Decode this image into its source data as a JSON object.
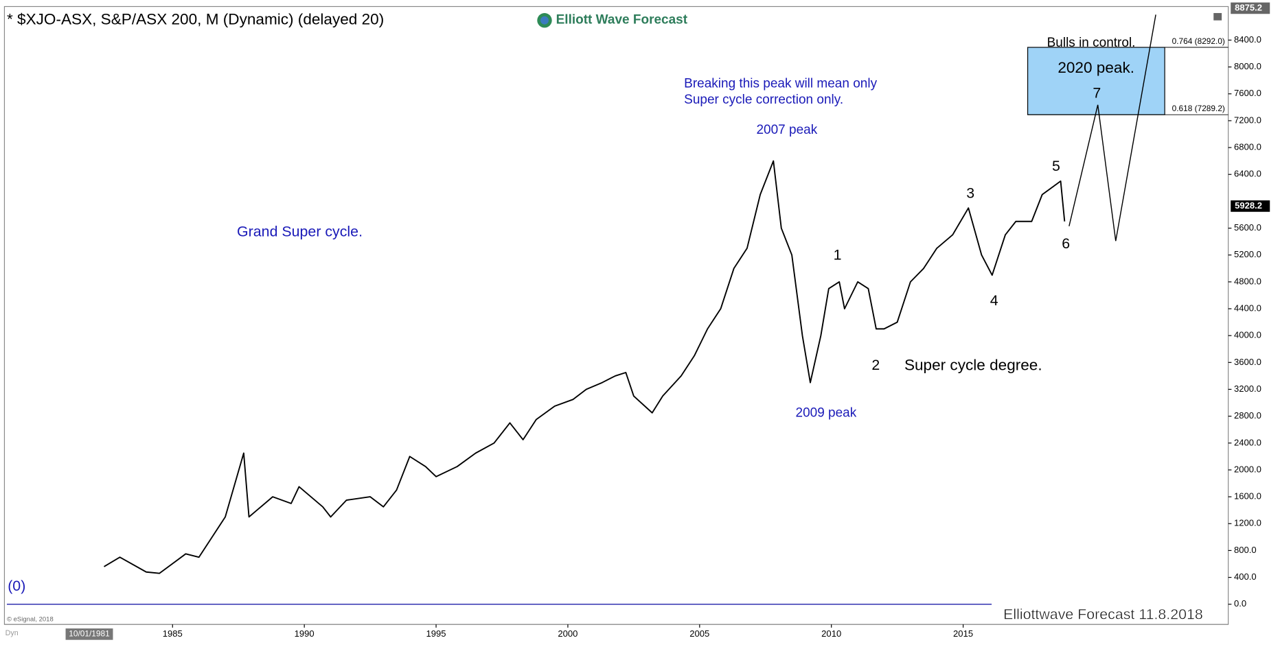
{
  "chart_data": {
    "type": "line",
    "title": "* $XJO-ASX, S&P/ASX 200, M (Dynamic) (delayed 20)",
    "logo": "Elliott Wave Forecast",
    "footer": "Elliottwave Forecast  11.8.2018",
    "copyright": "© eSignal, 2018",
    "mode": "Dyn",
    "x_start_label": "10/01/1981",
    "xlim": [
      1978.62,
      2025.06
    ],
    "ylim": [
      -300,
      8900
    ],
    "xticks": [
      1985,
      1990,
      1995,
      2000,
      2005,
      2010,
      2015
    ],
    "yticks": [
      {
        "value": 0,
        "label": "0.0"
      },
      {
        "value": 400,
        "label": "400.0"
      },
      {
        "value": 800,
        "label": "800.0"
      },
      {
        "value": 1200,
        "label": "1200.0"
      },
      {
        "value": 1600,
        "label": "1600.0"
      },
      {
        "value": 2000,
        "label": "2000.0"
      },
      {
        "value": 2400,
        "label": "2400.0"
      },
      {
        "value": 2800,
        "label": "2800.0"
      },
      {
        "value": 3200,
        "label": "3200.0"
      },
      {
        "value": 3600,
        "label": "3600.0"
      },
      {
        "value": 4000,
        "label": "4000.0"
      },
      {
        "value": 4400,
        "label": "4400.0"
      },
      {
        "value": 4800,
        "label": "4800.0"
      },
      {
        "value": 5200,
        "label": "5200.0"
      },
      {
        "value": 5600,
        "label": "5600.0"
      },
      {
        "value": 6400,
        "label": "6400.0"
      },
      {
        "value": 6800,
        "label": "6800.0"
      },
      {
        "value": 7200,
        "label": "7200.0"
      },
      {
        "value": 7600,
        "label": "7600.0"
      },
      {
        "value": 8000,
        "label": "8000.0"
      },
      {
        "value": 8400,
        "label": "8400.0"
      }
    ],
    "series": [
      {
        "color": "#000000",
        "x": [
          1982.4,
          1983.0,
          1984.0,
          1984.5,
          1985.5,
          1986.0,
          1986.5,
          1987.0,
          1987.7,
          1987.9,
          1988.2,
          1988.8,
          1989.5,
          1989.8,
          1990.7,
          1991.0,
          1991.6,
          1992.5,
          1993.0,
          1993.5,
          1994.0,
          1994.6,
          1995.0,
          1995.8,
          1996.5,
          1997.2,
          1997.8,
          1998.3,
          1998.8,
          1999.5,
          2000.2,
          2000.7,
          2001.3,
          2001.8,
          2002.2,
          2002.5,
          2003.2,
          2003.6,
          2004.3,
          2004.8,
          2005.3,
          2005.8,
          2006.3,
          2006.8,
          2007.3,
          2007.8,
          2008.1,
          2008.5,
          2008.9,
          2009.2,
          2009.6,
          2009.9,
          2010.3,
          2010.5,
          2011.0,
          2011.4,
          2011.7,
          2012.0,
          2012.5,
          2013.0,
          2013.5,
          2014.0,
          2014.6,
          2015.2,
          2015.7,
          2016.1,
          2016.6,
          2017.0,
          2017.6,
          2018.0,
          2018.7,
          2018.85
        ],
        "values": [
          560,
          700,
          480,
          460,
          750,
          700,
          1000,
          1300,
          2250,
          1300,
          1400,
          1600,
          1500,
          1750,
          1450,
          1300,
          1550,
          1600,
          1450,
          1700,
          2200,
          2050,
          1900,
          2050,
          2250,
          2400,
          2700,
          2450,
          2750,
          2950,
          3050,
          3200,
          3300,
          3400,
          3450,
          3100,
          2850,
          3100,
          3400,
          3700,
          4100,
          4400,
          5000,
          5300,
          6100,
          6600,
          5600,
          5200,
          4000,
          3300,
          4000,
          4700,
          4800,
          4400,
          4800,
          4700,
          4100,
          4100,
          4200,
          4800,
          5000,
          5300,
          5500,
          5900,
          5200,
          4900,
          5500,
          5700,
          5700,
          6100,
          6300,
          5700
        ]
      }
    ],
    "projection": {
      "x": [
        2019.02,
        2020.11,
        2020.79,
        2022.31
      ],
      "values": [
        5629,
        7436,
        5409,
        8779
      ]
    },
    "zone_x": [
      2017.45,
      2022.65
    ],
    "fib_levels": [
      {
        "value": 8292.0,
        "label": "0.764 (8292.0)"
      },
      {
        "value": 7289.2,
        "label": "0.618 (7289.2)"
      }
    ],
    "last_price": {
      "value": 5928.2,
      "label": "5928.2"
    },
    "high_tag": {
      "value": 8875.2,
      "label": "8875.2"
    },
    "annotations": [
      "(0)",
      "Grand Super cycle.",
      "Breaking this peak will mean only",
      "Super cycle correction only.",
      "2007 peak",
      "2009 peak",
      "1",
      "2",
      "3",
      "4",
      "5",
      "6",
      "7",
      "Super cycle degree.",
      "Bulls in control.",
      "2020 peak."
    ]
  }
}
